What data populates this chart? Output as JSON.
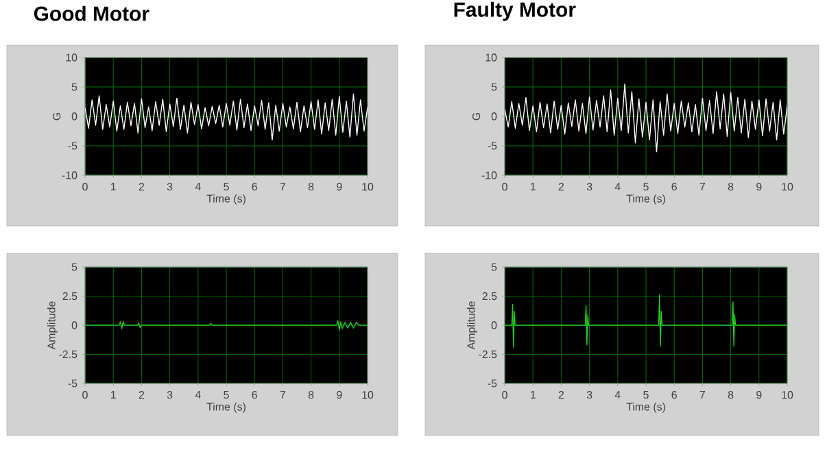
{
  "chart_data": [
    {
      "type": "line",
      "title": "Good Motor",
      "xlabel": "Time (s)",
      "ylabel": "G",
      "xlim": [
        0,
        10
      ],
      "ylim": [
        -10,
        10
      ],
      "xticks": [
        0,
        1,
        2,
        3,
        4,
        5,
        6,
        7,
        8,
        9,
        10
      ],
      "yticks": [
        -10,
        -5,
        0,
        5,
        10
      ],
      "grid": true,
      "x": [
        0,
        0.125,
        0.25,
        0.375,
        0.5,
        0.625,
        0.75,
        0.875,
        1,
        1.125,
        1.25,
        1.375,
        1.5,
        1.625,
        1.75,
        1.875,
        2,
        2.125,
        2.25,
        2.375,
        2.5,
        2.625,
        2.75,
        2.875,
        3,
        3.125,
        3.25,
        3.375,
        3.5,
        3.625,
        3.75,
        3.875,
        4,
        4.125,
        4.25,
        4.375,
        4.5,
        4.625,
        4.75,
        4.875,
        5,
        5.125,
        5.25,
        5.375,
        5.5,
        5.625,
        5.75,
        5.875,
        6,
        6.125,
        6.25,
        6.375,
        6.5,
        6.625,
        6.75,
        6.875,
        7,
        7.125,
        7.25,
        7.375,
        7.5,
        7.625,
        7.75,
        7.875,
        8,
        8.125,
        8.25,
        8.375,
        8.5,
        8.625,
        8.75,
        8.875,
        9,
        9.125,
        9.25,
        9.375,
        9.5,
        9.625,
        9.75,
        9.875,
        10
      ],
      "series": [
        {
          "color": "#ffffff",
          "values": [
            1.5,
            -2,
            2.8,
            -1.5,
            3.5,
            -2.2,
            2,
            -1.8,
            2.6,
            -2.5,
            1.8,
            -2.2,
            2.4,
            -1.6,
            2.2,
            -2.8,
            3,
            -1.9,
            1.6,
            -2.4,
            2.5,
            -1.5,
            2.9,
            -2.6,
            2.1,
            -1.7,
            3.1,
            -2.2,
            1.9,
            -2.8,
            2.4,
            -1.4,
            2,
            -2.1,
            1.5,
            -1.6,
            1.7,
            -1.2,
            1.9,
            -1.8,
            2.2,
            -1.5,
            2.6,
            -2.3,
            2.9,
            -1.9,
            2.1,
            -2.4,
            1.8,
            -1.6,
            2.7,
            -2.2,
            2.3,
            -4,
            1.9,
            -2.5,
            2.2,
            -1.8,
            1.6,
            -2.1,
            2.4,
            -2.6,
            1.8,
            -1.9,
            2.5,
            -2.2,
            2.8,
            -3,
            2.3,
            -2.4,
            2.9,
            -3.2,
            3.4,
            -2.7,
            2.6,
            -3.5,
            3.8,
            -3.2,
            2.8,
            -2.5,
            1.5
          ]
        }
      ]
    },
    {
      "type": "line",
      "title": "Faulty Motor",
      "xlabel": "Time (s)",
      "ylabel": "G",
      "xlim": [
        0,
        10
      ],
      "ylim": [
        -10,
        10
      ],
      "xticks": [
        0,
        1,
        2,
        3,
        4,
        5,
        6,
        7,
        8,
        9,
        10
      ],
      "yticks": [
        -10,
        -5,
        0,
        5,
        10
      ],
      "grid": true,
      "x": [
        0,
        0.125,
        0.25,
        0.375,
        0.5,
        0.625,
        0.75,
        0.875,
        1,
        1.125,
        1.25,
        1.375,
        1.5,
        1.625,
        1.75,
        1.875,
        2,
        2.125,
        2.25,
        2.375,
        2.5,
        2.625,
        2.75,
        2.875,
        3,
        3.125,
        3.25,
        3.375,
        3.5,
        3.625,
        3.75,
        3.875,
        4,
        4.125,
        4.25,
        4.375,
        4.5,
        4.625,
        4.75,
        4.875,
        5,
        5.125,
        5.25,
        5.375,
        5.5,
        5.625,
        5.75,
        5.875,
        6,
        6.125,
        6.25,
        6.375,
        6.5,
        6.625,
        6.75,
        6.875,
        7,
        7.125,
        7.25,
        7.375,
        7.5,
        7.625,
        7.75,
        7.875,
        8,
        8.125,
        8.25,
        8.375,
        8.5,
        8.625,
        8.75,
        8.875,
        9,
        9.125,
        9.25,
        9.375,
        9.5,
        9.625,
        9.75,
        9.875,
        10
      ],
      "series": [
        {
          "color": "#ffffff",
          "values": [
            1.2,
            -1.8,
            2.5,
            -2,
            2.2,
            -1.5,
            3.2,
            -2.4,
            1.8,
            -2.6,
            2.4,
            -1.9,
            2.1,
            -2.8,
            2.6,
            -2.2,
            1.9,
            -3,
            2.3,
            -1.7,
            2.8,
            -2.5,
            2.2,
            -2.9,
            3.3,
            -2.3,
            2.7,
            -1.8,
            3.5,
            -2.6,
            4.5,
            -3.2,
            3.1,
            -2.4,
            5.5,
            -2.8,
            4.2,
            -4.5,
            3,
            -3.5,
            2.4,
            -4,
            2.8,
            -6,
            2.5,
            -3.2,
            3.8,
            -2.5,
            2.2,
            -2.9,
            2.6,
            -1.8,
            2.3,
            -2.6,
            2,
            -3.2,
            3.1,
            -2.4,
            2.7,
            -2.9,
            4.2,
            -2.1,
            3.8,
            -3.4,
            4.1,
            -2.5,
            3.2,
            -2.8,
            2.9,
            -3.6,
            2.6,
            -2.2,
            2.8,
            -3.3,
            3,
            -2.5,
            2.4,
            -4,
            2.8,
            -3,
            1.8
          ]
        }
      ]
    },
    {
      "type": "line",
      "xlabel": "Time (s)",
      "ylabel": "Amplitude",
      "xlim": [
        0,
        10
      ],
      "ylim": [
        -5,
        5
      ],
      "xticks": [
        0,
        1,
        2,
        3,
        4,
        5,
        6,
        7,
        8,
        9,
        10
      ],
      "yticks": [
        -5,
        -2.5,
        0,
        2.5,
        5
      ],
      "grid": true,
      "x": [
        0,
        1.2,
        1.25,
        1.3,
        1.35,
        1.4,
        1.85,
        1.9,
        1.95,
        2,
        4.4,
        4.45,
        4.5,
        8.9,
        8.95,
        9,
        9.05,
        9.1,
        9.2,
        9.3,
        9.4,
        9.5,
        9.6,
        9.7,
        10
      ],
      "series": [
        {
          "color": "#22cc22",
          "values": [
            0,
            0,
            0.3,
            -0.3,
            0.3,
            0,
            0,
            0.2,
            -0.2,
            0,
            0,
            0.15,
            0,
            0,
            0.4,
            -0.4,
            0.3,
            -0.3,
            0.25,
            -0.25,
            0.25,
            -0.25,
            0.25,
            0,
            0
          ]
        }
      ]
    },
    {
      "type": "line",
      "xlabel": "Time (s)",
      "ylabel": "Amplitude",
      "xlim": [
        0,
        10
      ],
      "ylim": [
        -5,
        5
      ],
      "xticks": [
        0,
        1,
        2,
        3,
        4,
        5,
        6,
        7,
        8,
        9,
        10
      ],
      "yticks": [
        -5,
        -2.5,
        0,
        2.5,
        5
      ],
      "grid": true,
      "x": [
        0,
        0.25,
        0.28,
        0.31,
        0.34,
        0.37,
        2.85,
        2.88,
        2.91,
        2.94,
        2.97,
        5.45,
        5.48,
        5.51,
        5.54,
        5.57,
        8.05,
        8.08,
        8.11,
        8.14,
        8.17,
        10
      ],
      "series": [
        {
          "color": "#22cc22",
          "values": [
            0,
            0,
            1.8,
            -1.9,
            1.2,
            0,
            0,
            1.7,
            -1.7,
            0.9,
            0,
            0,
            2.6,
            -1.8,
            1.2,
            0,
            0,
            2,
            -1.8,
            0.9,
            0,
            0
          ]
        }
      ]
    }
  ]
}
